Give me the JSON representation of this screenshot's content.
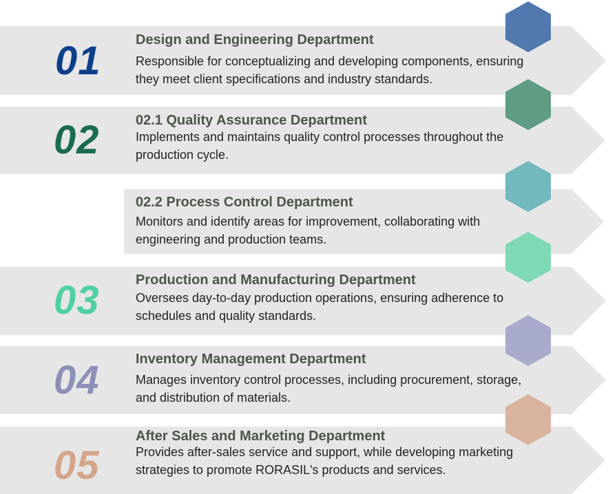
{
  "items": [
    {
      "number": "01",
      "title": "Design and Engineering Department",
      "desc": "Responsible for conceptualizing and developing components, ensuring they meet client specifications and industry standards.",
      "color": "#0d3f8a"
    },
    {
      "number": "02",
      "title": "02.1 Quality Assurance Department",
      "desc": "Implements and maintains quality control processes throughout the production cycle.",
      "color": "#1a6b52"
    },
    {
      "number": "",
      "title": "02.2 Process Control Department",
      "desc": "Monitors and identify areas for improvement, collaborating with engineering and production teams.",
      "color": ""
    },
    {
      "number": "03",
      "title": "Production and Manufacturing Department",
      "desc": "Oversees day-to-day production operations, ensuring adherence to schedules and quality standards.",
      "color": "#4fd0a0"
    },
    {
      "number": "04",
      "title": "Inventory Management Department",
      "desc": "Manages inventory control processes, including procurement, storage, and distribution of materials.",
      "color": "#8c90b8"
    },
    {
      "number": "05",
      "title": "After Sales and Marketing Department",
      "desc": "Provides after-sales service and support, while developing marketing strategies to promote RORASIL's products and services.",
      "color": "#d3a68a"
    }
  ],
  "hexagons": [
    {
      "color": "#5179b0"
    },
    {
      "color": "#5e9c83"
    },
    {
      "color": "#72b8bc"
    },
    {
      "color": "#7fd9b5"
    },
    {
      "color": "#a8abcb"
    },
    {
      "color": "#d8b49e"
    }
  ]
}
